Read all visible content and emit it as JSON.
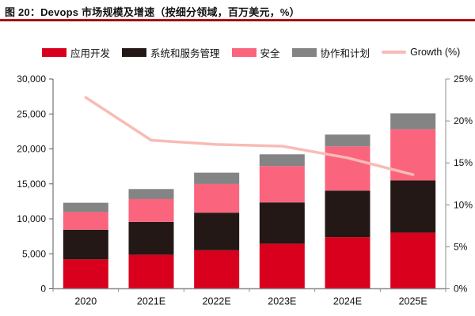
{
  "figure": {
    "title": "图 20：Devops 市场规模及增速（按细分领域，百万美元，%）"
  },
  "legend": [
    {
      "label": "应用开发",
      "color": "#d8001d",
      "swatch": "patch"
    },
    {
      "label": "系统和服务管理",
      "color": "#231815",
      "swatch": "patch"
    },
    {
      "label": "安全",
      "color": "#fa647d",
      "swatch": "patch"
    },
    {
      "label": "协作和计划",
      "color": "#848484",
      "swatch": "patch"
    },
    {
      "label": "Growth (%)",
      "color": "#f8bbb6",
      "swatch": "line"
    }
  ],
  "chart_data": {
    "type": "bar",
    "subtype": "stacked-bars-with-growth-line",
    "title": "Devops 市场规模及增速（按细分领域，百万美元，%）",
    "categories": [
      "2020",
      "2021E",
      "2022E",
      "2023E",
      "2024E",
      "2025E"
    ],
    "series": [
      {
        "name": "应用开发",
        "color": "#d8001d",
        "values": [
          4200,
          4870,
          5500,
          6450,
          7390,
          8030
        ]
      },
      {
        "name": "系统和服务管理",
        "color": "#231815",
        "values": [
          4240,
          4690,
          5380,
          5900,
          6650,
          7450
        ]
      },
      {
        "name": "安全",
        "color": "#fa647d",
        "values": [
          2530,
          3270,
          4100,
          5190,
          6320,
          7330
        ]
      },
      {
        "name": "协作和计划",
        "color": "#848484",
        "values": [
          1330,
          1430,
          1620,
          1690,
          1690,
          2280
        ]
      }
    ],
    "totals": [
      12300,
      14260,
      16600,
      19230,
      22050,
      25090
    ],
    "line_series": {
      "name": "Growth (%)",
      "color": "#f8bbb6",
      "values": [
        22.8,
        17.7,
        17.2,
        17.0,
        15.6,
        13.6
      ]
    },
    "left_axis": {
      "min": 0,
      "max": 30000,
      "step": 5000,
      "tick_labels": [
        "0",
        "5,000",
        "10,000",
        "15,000",
        "20,000",
        "25,000",
        "30,000"
      ]
    },
    "right_axis": {
      "min": 0,
      "max": 25,
      "step": 5,
      "tick_labels": [
        "0%",
        "5%",
        "10%",
        "15%",
        "20%",
        "25%"
      ]
    },
    "grid": false,
    "legend_position": "top",
    "unit": "百万美元",
    "axis_color": "#8c8c8c",
    "label_color": "#111111"
  }
}
